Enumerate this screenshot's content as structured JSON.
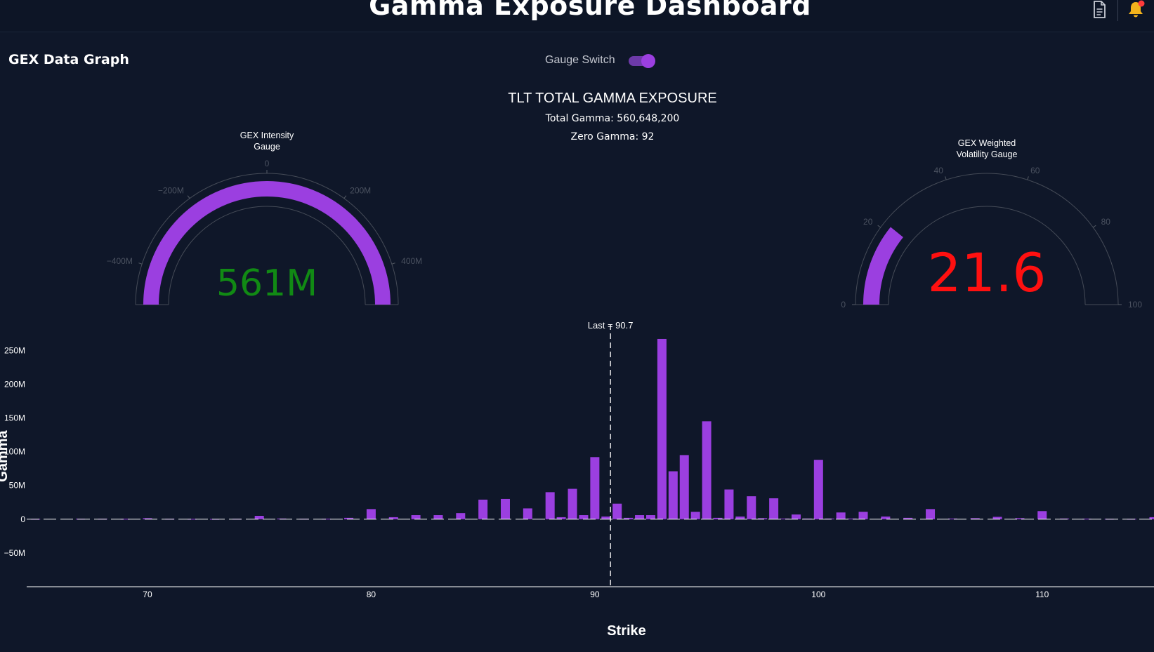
{
  "header": {
    "title": "Gamma Exposure Dashboard",
    "icons": [
      "document-icon",
      "bell-icon"
    ]
  },
  "controls": {
    "section_title": "GEX Data Graph",
    "gauge_switch_label": "Gauge Switch",
    "gauge_switch_on": true
  },
  "summary": {
    "title": "TLT TOTAL GAMMA EXPOSURE",
    "total_gamma": "Total Gamma: 560,648,200",
    "zero_gamma": "Zero Gamma: 92"
  },
  "colors": {
    "background": "#0f1729",
    "accent": "#9b3fe0",
    "positive_text": "#118a14",
    "negative_text": "#ff1010"
  },
  "chart_data": [
    {
      "type": "gauge",
      "title_lines": [
        "GEX Intensity",
        "Gauge"
      ],
      "value": 561000000,
      "value_label": "561M",
      "range": [
        -500000000,
        500000000
      ],
      "ticks": [
        {
          "value": -400000000,
          "label": "−400M"
        },
        {
          "value": -200000000,
          "label": "−200M"
        },
        {
          "value": 0,
          "label": "0"
        },
        {
          "value": 200000000,
          "label": "200M"
        },
        {
          "value": 400000000,
          "label": "400M"
        }
      ]
    },
    {
      "type": "gauge",
      "title_lines": [
        "GEX Weighted",
        "Volatility Gauge"
      ],
      "value": 21.6,
      "value_label": "21.6",
      "range": [
        0,
        100
      ],
      "ticks": [
        {
          "value": 0,
          "label": "0"
        },
        {
          "value": 20,
          "label": "20"
        },
        {
          "value": 40,
          "label": "40"
        },
        {
          "value": 60,
          "label": "60"
        },
        {
          "value": 80,
          "label": "80"
        },
        {
          "value": 100,
          "label": "100"
        }
      ]
    },
    {
      "type": "bar",
      "xlabel": "Strike",
      "ylabel": "Gamma",
      "x_ticks": [
        70,
        80,
        90,
        100,
        110
      ],
      "y_ticks": [
        {
          "value": -50000000,
          "label": "−50M"
        },
        {
          "value": 0,
          "label": "0"
        },
        {
          "value": 50000000,
          "label": "50M"
        },
        {
          "value": 100000000,
          "label": "100M"
        },
        {
          "value": 150000000,
          "label": "150M"
        },
        {
          "value": 200000000,
          "label": "200M"
        },
        {
          "value": 250000000,
          "label": "250M"
        }
      ],
      "xlim": [
        64.6,
        115
      ],
      "ylim": [
        -100000000,
        268000000
      ],
      "last_price": 90.7,
      "last_label": "Last = 90.7",
      "strikes": [
        65,
        67,
        68,
        69,
        70,
        71,
        72,
        73,
        74,
        75,
        76,
        77,
        78,
        79,
        80,
        81,
        82,
        83,
        84,
        85,
        86,
        87,
        88,
        88.5,
        89,
        89.5,
        90,
        90.5,
        91,
        91.5,
        92,
        92.5,
        93,
        93.5,
        94,
        94.5,
        95,
        95.5,
        96,
        96.5,
        97,
        97.5,
        98,
        98.5,
        99,
        99.5,
        100,
        100.5,
        101,
        101.5,
        102,
        103,
        104,
        105,
        106,
        107,
        108,
        109,
        110,
        111,
        112,
        113,
        114,
        115
      ],
      "values": [
        500000,
        700000,
        800000,
        600000,
        1500000,
        700000,
        500000,
        400000,
        700000,
        5000000,
        1000000,
        800000,
        700000,
        2000000,
        15000000,
        3000000,
        6000000,
        6000000,
        9000000,
        29000000,
        30000000,
        16000000,
        40000000,
        3000000,
        45000000,
        6000000,
        92000000,
        4000000,
        23000000,
        2000000,
        6000000,
        6000000,
        267000000,
        71000000,
        95000000,
        11000000,
        145000000,
        2000000,
        44000000,
        4000000,
        34000000,
        1500000,
        31000000,
        1000000,
        7000000,
        1000000,
        88000000,
        1000000,
        10000000,
        1000000,
        11000000,
        4000000,
        2000000,
        15000000,
        1000000,
        1500000,
        3500000,
        1500000,
        12000000,
        1000000,
        800000,
        600000,
        600000,
        3000000
      ]
    }
  ]
}
